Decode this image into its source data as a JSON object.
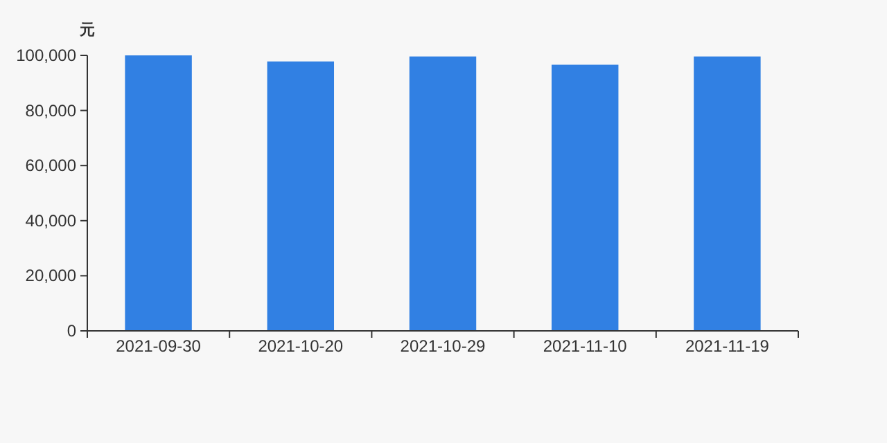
{
  "chart_data": {
    "type": "bar",
    "ylabel": "元",
    "categories": [
      "2021-09-30",
      "2021-10-20",
      "2021-10-29",
      "2021-11-10",
      "2021-11-19"
    ],
    "values": [
      100000,
      97800,
      99600,
      96600,
      99600
    ],
    "color": "#3180e3",
    "ylim": [
      0,
      100000
    ],
    "yticks": [
      {
        "value": 0,
        "label": "0"
      },
      {
        "value": 20000,
        "label": "20,000"
      },
      {
        "value": 40000,
        "label": "40,000"
      },
      {
        "value": 60000,
        "label": "60,000"
      },
      {
        "value": 80000,
        "label": "80,000"
      },
      {
        "value": 100000,
        "label": "100,000"
      }
    ],
    "grid": false
  }
}
